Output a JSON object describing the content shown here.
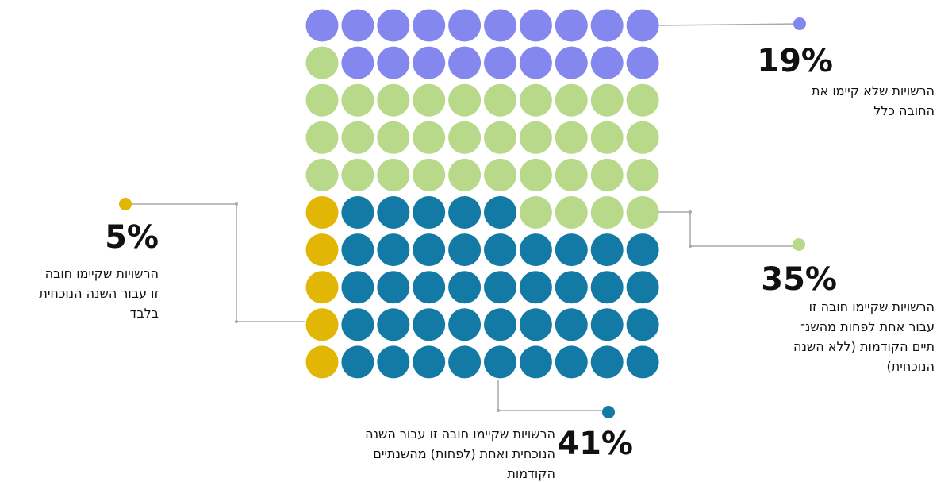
{
  "chart_data": {
    "type": "waffle",
    "series": [
      {
        "name": [
          "הרשויות שלא קיימו את",
          "החובה כלל"
        ],
        "color": "#8488ee",
        "values": [
          19
        ],
        "value_labels": [
          "19%"
        ]
      },
      {
        "name": [
          "הרשויות שקיימו חובה זו",
          "עבור אחת לפחות מהשנ־",
          "תיים הקודמות (ללא השנה",
          "הנוכחית)"
        ],
        "color": "#b8d98a",
        "values": [
          35
        ],
        "value_labels": [
          "35%"
        ]
      },
      {
        "name": [
          "הרשויות שקיימו חובה זו עבור השנה",
          "הנוכחית ואחת (לפחות) מהשנתיים",
          "הקודמות"
        ],
        "color": "#137aa5",
        "values": [
          41
        ],
        "value_labels": [
          "41%"
        ]
      },
      {
        "name": [
          "הרשויות שקיימו חובה",
          "זו עבור השנה הנוכחית",
          "בלבד"
        ],
        "color": "#e2b605",
        "values": [
          5
        ],
        "value_labels": [
          "5%"
        ]
      }
    ]
  }
}
